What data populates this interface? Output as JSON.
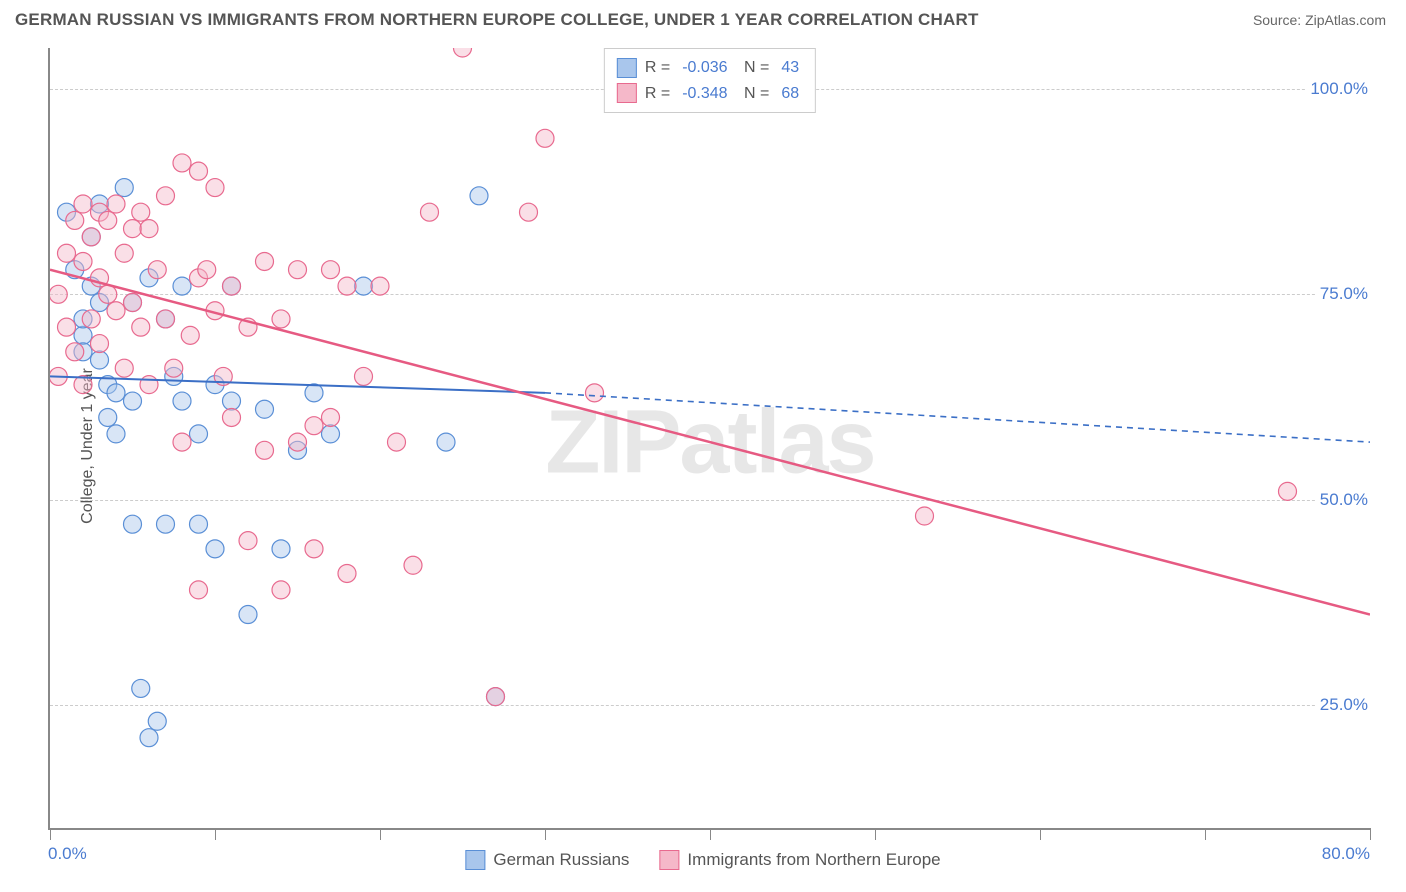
{
  "title": "GERMAN RUSSIAN VS IMMIGRANTS FROM NORTHERN EUROPE COLLEGE, UNDER 1 YEAR CORRELATION CHART",
  "source": "Source: ZipAtlas.com",
  "watermark": "ZIPatlas",
  "yaxis_title": "College, Under 1 year",
  "chart": {
    "type": "scatter",
    "xlim": [
      0,
      80
    ],
    "ylim": [
      10,
      105
    ],
    "xticks": [
      0,
      10,
      20,
      30,
      40,
      50,
      60,
      70,
      80
    ],
    "yticks": [
      25,
      50,
      75,
      100
    ],
    "ytick_labels": [
      "25.0%",
      "50.0%",
      "75.0%",
      "100.0%"
    ],
    "xaxis_label_left": "0.0%",
    "xaxis_label_right": "80.0%",
    "grid_color": "#cccccc",
    "axis_color": "#888888",
    "background": "#ffffff",
    "marker_radius": 9,
    "marker_opacity": 0.45,
    "series": [
      {
        "name": "German Russians",
        "color_fill": "#a9c6ec",
        "color_stroke": "#5a8fd6",
        "R": "-0.036",
        "N": "43",
        "trend": {
          "x1": 0,
          "y1": 65,
          "x2": 30,
          "y2": 63,
          "x2_dash": 80,
          "y2_dash": 57,
          "stroke": "#3b6fc6",
          "width": 2
        },
        "points": [
          [
            1,
            85
          ],
          [
            1.5,
            78
          ],
          [
            2,
            70
          ],
          [
            2,
            68
          ],
          [
            2,
            72
          ],
          [
            2.5,
            82
          ],
          [
            2.5,
            76
          ],
          [
            3,
            74
          ],
          [
            3,
            67
          ],
          [
            3,
            86
          ],
          [
            3.5,
            64
          ],
          [
            3.5,
            60
          ],
          [
            4,
            63
          ],
          [
            4,
            58
          ],
          [
            4.5,
            88
          ],
          [
            5,
            74
          ],
          [
            5,
            62
          ],
          [
            5,
            47
          ],
          [
            5.5,
            27
          ],
          [
            6,
            21
          ],
          [
            6,
            77
          ],
          [
            6.5,
            23
          ],
          [
            7,
            72
          ],
          [
            7,
            47
          ],
          [
            7.5,
            65
          ],
          [
            8,
            76
          ],
          [
            8,
            62
          ],
          [
            9,
            58
          ],
          [
            9,
            47
          ],
          [
            10,
            44
          ],
          [
            10,
            64
          ],
          [
            11,
            76
          ],
          [
            11,
            62
          ],
          [
            12,
            36
          ],
          [
            13,
            61
          ],
          [
            14,
            44
          ],
          [
            15,
            56
          ],
          [
            16,
            63
          ],
          [
            17,
            58
          ],
          [
            19,
            76
          ],
          [
            24,
            57
          ],
          [
            26,
            87
          ],
          [
            27,
            26
          ]
        ]
      },
      {
        "name": "Immigrants from Northern Europe",
        "color_fill": "#f5b8c9",
        "color_stroke": "#e86a8f",
        "R": "-0.348",
        "N": "68",
        "trend": {
          "x1": 0,
          "y1": 78,
          "x2": 80,
          "y2": 36,
          "stroke": "#e65a82",
          "width": 2.5
        },
        "points": [
          [
            0.5,
            75
          ],
          [
            0.5,
            65
          ],
          [
            1,
            80
          ],
          [
            1,
            71
          ],
          [
            1.5,
            84
          ],
          [
            1.5,
            68
          ],
          [
            2,
            86
          ],
          [
            2,
            79
          ],
          [
            2,
            64
          ],
          [
            2.5,
            82
          ],
          [
            2.5,
            72
          ],
          [
            3,
            85
          ],
          [
            3,
            77
          ],
          [
            3,
            69
          ],
          [
            3.5,
            84
          ],
          [
            3.5,
            75
          ],
          [
            4,
            86
          ],
          [
            4,
            73
          ],
          [
            4.5,
            80
          ],
          [
            4.5,
            66
          ],
          [
            5,
            83
          ],
          [
            5,
            74
          ],
          [
            5.5,
            85
          ],
          [
            5.5,
            71
          ],
          [
            6,
            83
          ],
          [
            6,
            64
          ],
          [
            6.5,
            78
          ],
          [
            7,
            87
          ],
          [
            7,
            72
          ],
          [
            7.5,
            66
          ],
          [
            8,
            91
          ],
          [
            8,
            57
          ],
          [
            8.5,
            70
          ],
          [
            9,
            77
          ],
          [
            9,
            39
          ],
          [
            9.5,
            78
          ],
          [
            10,
            73
          ],
          [
            10,
            88
          ],
          [
            10.5,
            65
          ],
          [
            11,
            76
          ],
          [
            11,
            60
          ],
          [
            12,
            71
          ],
          [
            12,
            45
          ],
          [
            13,
            79
          ],
          [
            13,
            56
          ],
          [
            14,
            72
          ],
          [
            14,
            39
          ],
          [
            15,
            78
          ],
          [
            15,
            57
          ],
          [
            16,
            44
          ],
          [
            17,
            78
          ],
          [
            17,
            60
          ],
          [
            18,
            76
          ],
          [
            18,
            41
          ],
          [
            19,
            65
          ],
          [
            20,
            76
          ],
          [
            21,
            57
          ],
          [
            22,
            42
          ],
          [
            23,
            85
          ],
          [
            25,
            105
          ],
          [
            27,
            26
          ],
          [
            29,
            85
          ],
          [
            30,
            94
          ],
          [
            33,
            63
          ],
          [
            53,
            48
          ],
          [
            75,
            51
          ],
          [
            16,
            59
          ],
          [
            9,
            90
          ]
        ]
      }
    ]
  },
  "legend_bottom": [
    {
      "label": "German Russians",
      "fill": "#a9c6ec",
      "stroke": "#5a8fd6"
    },
    {
      "label": "Immigrants from Northern Europe",
      "fill": "#f5b8c9",
      "stroke": "#e86a8f"
    }
  ],
  "colors": {
    "tick_label": "#4a7bd0",
    "title": "#555555"
  }
}
